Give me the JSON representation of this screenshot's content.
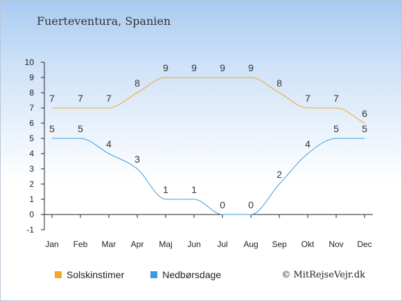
{
  "header": {
    "title": "Fuerteventura, Spanien"
  },
  "footer": {
    "copyright": "© MitRejseVejr.dk"
  },
  "colors": {
    "sun": "#f5a623",
    "rain": "#3a9be0"
  },
  "chart_data": {
    "type": "line",
    "title": "Fuerteventura, Spanien",
    "categories": [
      "Jan",
      "Feb",
      "Mar",
      "Apr",
      "Maj",
      "Jun",
      "Jul",
      "Aug",
      "Sep",
      "Okt",
      "Nov",
      "Dec"
    ],
    "series": [
      {
        "name": "Solskinstimer",
        "color": "#f5a623",
        "values": [
          7,
          7,
          7,
          8,
          9,
          9,
          9,
          9,
          8,
          7,
          7,
          6
        ]
      },
      {
        "name": "Nedbørsdage",
        "color": "#3a9be0",
        "values": [
          5,
          5,
          4,
          3,
          1,
          1,
          0,
          0,
          2,
          4,
          5,
          5
        ]
      }
    ],
    "ylim": [
      -1,
      10
    ],
    "yticks": [
      -1,
      0,
      1,
      2,
      3,
      4,
      5,
      6,
      7,
      8,
      9,
      10
    ],
    "grid": false,
    "legend": "bottom-left"
  }
}
